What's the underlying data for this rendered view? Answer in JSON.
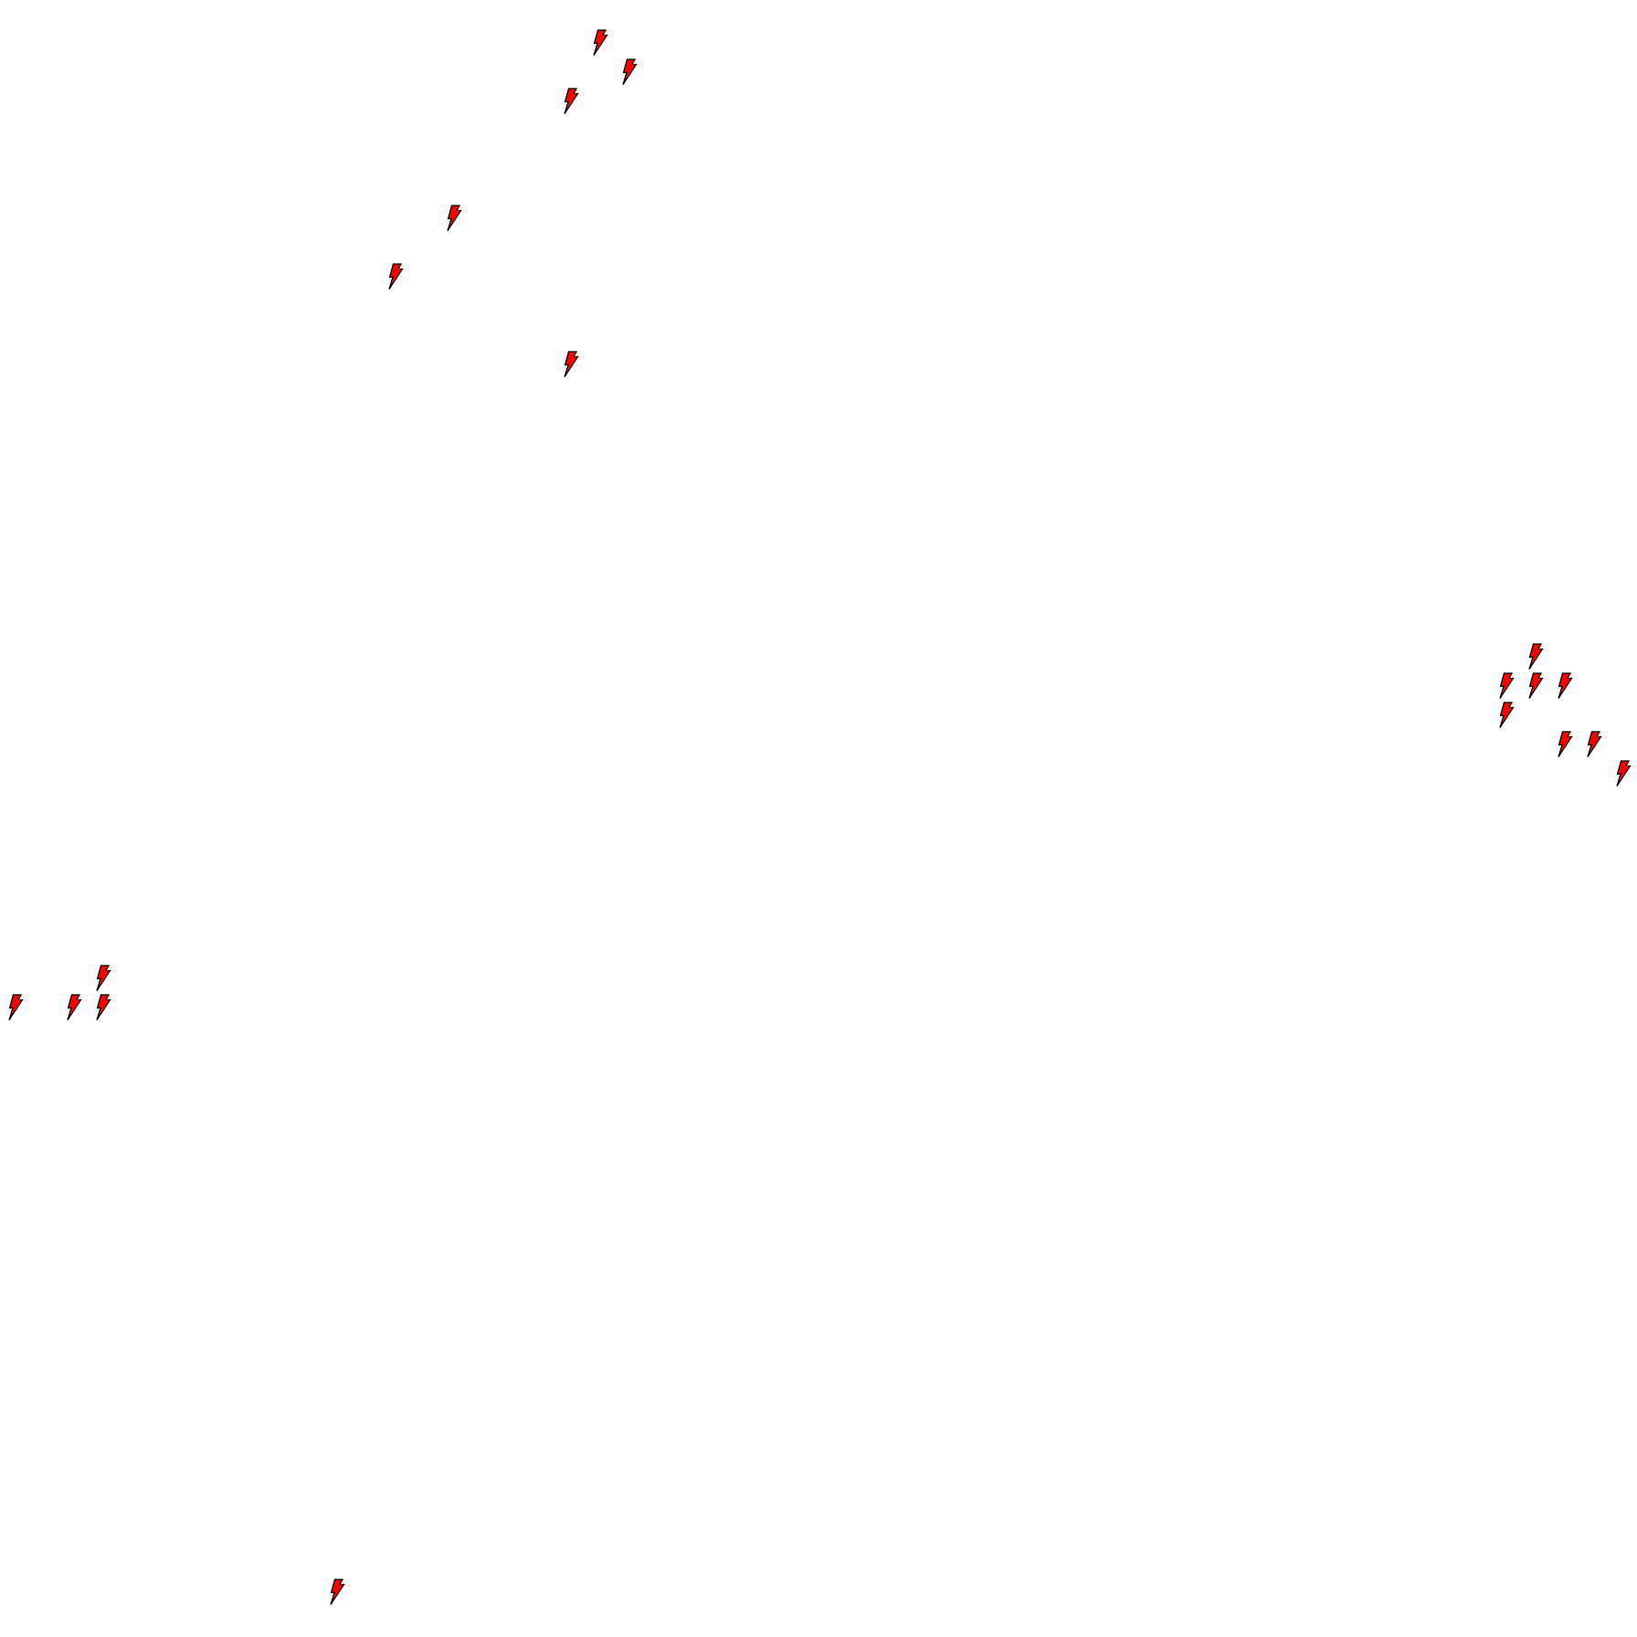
{
  "map": {
    "background": "#ffffff",
    "marker_style": {
      "icon": "lightning-bolt-icon",
      "fill": "#ff0000",
      "stroke": "#000000"
    },
    "marker_count": 19
  }
}
